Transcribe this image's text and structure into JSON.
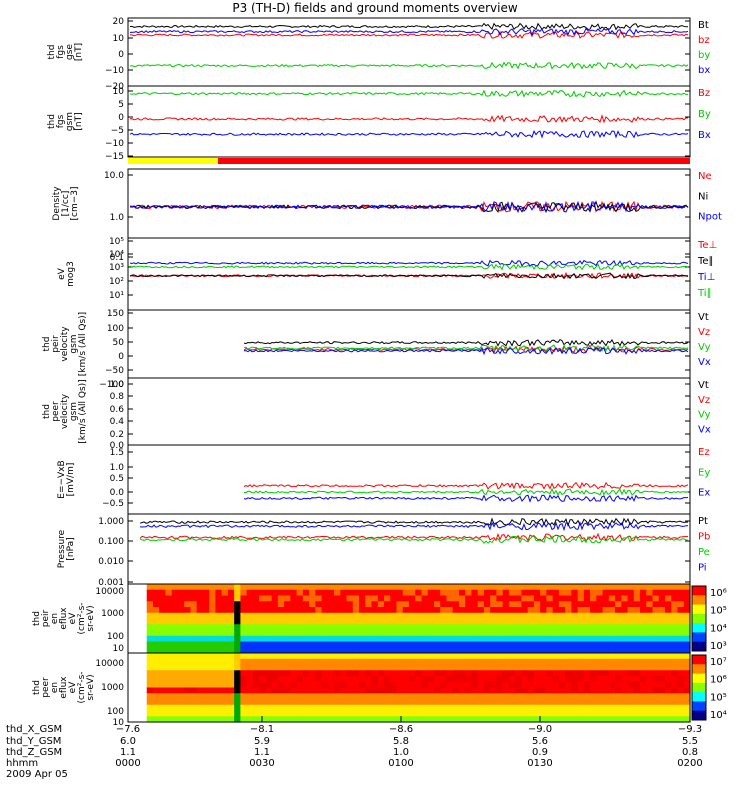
{
  "title": "P3 (TH-D) fields and ground moments overview",
  "colors": {
    "black": "#000000",
    "red": "#ff0000",
    "green": "#00cc00",
    "blue": "#0000ff",
    "yellow": "#ffff00"
  },
  "chart_data": [
    {
      "type": "line",
      "panel": "fgs-gse",
      "ylabel": [
        "thd",
        "fgs",
        "gse",
        "[nT]"
      ],
      "ylim": [
        -20,
        20
      ],
      "yticks": [
        "20",
        "10",
        "0",
        "−10",
        "−20"
      ],
      "series": [
        {
          "name": "Bt",
          "color": "black",
          "approx": 15
        },
        {
          "name": "bz",
          "color": "red",
          "approx": 10
        },
        {
          "name": "by",
          "color": "green",
          "approx": -8
        },
        {
          "name": "bx",
          "color": "blue",
          "approx": 12
        }
      ]
    },
    {
      "type": "line",
      "panel": "fgs-gsm",
      "ylabel": [
        "thd",
        "fgs",
        "gsm",
        "[nT]"
      ],
      "ylim": [
        -18,
        10
      ],
      "yticks": [
        "10",
        "5",
        "0",
        "−5",
        "−10",
        "−15"
      ],
      "series": [
        {
          "name": "Bz",
          "color": "red",
          "approx": -3
        },
        {
          "name": "By",
          "color": "green",
          "approx": 7
        },
        {
          "name": "Bx",
          "color": "blue",
          "approx": -9
        }
      ]
    },
    {
      "type": "line",
      "panel": "density",
      "ylabel": [
        "Density",
        "[1/cc]",
        "[cm−3]"
      ],
      "scale": "log",
      "ylim": [
        0.1,
        10
      ],
      "yticks": [
        "10.0",
        "1.0",
        "0.1"
      ],
      "series": [
        {
          "name": "Ne",
          "color": "red",
          "approx": 0.8
        },
        {
          "name": "Ni",
          "color": "black",
          "approx": 0.8
        },
        {
          "name": "Npot",
          "color": "blue",
          "approx": 0.8
        }
      ]
    },
    {
      "type": "line",
      "panel": "temperature",
      "ylabel": [
        "eV",
        "mog3"
      ],
      "scale": "log",
      "ylim": [
        10,
        100000
      ],
      "yticks": [
        "10⁵",
        "10⁴",
        "10³",
        "10²",
        "10¹"
      ],
      "series": [
        {
          "name": "Te⊥",
          "color": "red",
          "approx": 800
        },
        {
          "name": "Te∥",
          "color": "black",
          "approx": 800
        },
        {
          "name": "Ti⊥",
          "color": "blue",
          "approx": 4000
        },
        {
          "name": "Ti∥",
          "color": "green",
          "approx": 2500
        }
      ]
    },
    {
      "type": "line",
      "panel": "peir-velocity",
      "ylabel": [
        "thd",
        "peir",
        "velocity",
        "gsm",
        "[km/s (All Qs)]"
      ],
      "ylim": [
        -100,
        150
      ],
      "yticks": [
        "150",
        "100",
        "50",
        "0",
        "−50",
        "−100"
      ],
      "series": [
        {
          "name": "Vt",
          "color": "black",
          "approx": 30
        },
        {
          "name": "Vz",
          "color": "red",
          "approx": 5
        },
        {
          "name": "Vy",
          "color": "green",
          "approx": 10
        },
        {
          "name": "Vx",
          "color": "blue",
          "approx": 0
        }
      ]
    },
    {
      "type": "line",
      "panel": "peer-velocity",
      "ylabel": [
        "thd",
        "peer",
        "velocity",
        "gsm",
        "[km/s (All Qs)]"
      ],
      "ylim": [
        0,
        1
      ],
      "yticks": [
        "1.0",
        "0.8",
        "0.6",
        "0.4",
        "0.2",
        "0.0"
      ],
      "series": [
        {
          "name": "Vt",
          "color": "black"
        },
        {
          "name": "Vz",
          "color": "red"
        },
        {
          "name": "Vy",
          "color": "green"
        },
        {
          "name": "Vx",
          "color": "blue"
        }
      ]
    },
    {
      "type": "line",
      "panel": "efield",
      "ylabel": [
        "E=−VxB",
        "[mV/m]"
      ],
      "ylim": [
        -0.6,
        1.6
      ],
      "yticks": [
        "1.5",
        "1.0",
        "0.5",
        "0.0",
        "−0.5"
      ],
      "series": [
        {
          "name": "Ez",
          "color": "red",
          "approx": 0.3
        },
        {
          "name": "Ey",
          "color": "green",
          "approx": 0.1
        },
        {
          "name": "Ex",
          "color": "blue",
          "approx": -0.1
        }
      ]
    },
    {
      "type": "line",
      "panel": "pressure",
      "ylabel": [
        "Pressure",
        "[nPa]"
      ],
      "scale": "log",
      "ylim": [
        0.001,
        1
      ],
      "yticks": [
        "1.000",
        "0.100",
        "0.010",
        "0.001"
      ],
      "series": [
        {
          "name": "Pt",
          "color": "black",
          "approx": 0.45
        },
        {
          "name": "Pb",
          "color": "red",
          "approx": 0.1
        },
        {
          "name": "Pe",
          "color": "green",
          "approx": 0.08
        },
        {
          "name": "Pi",
          "color": "blue",
          "approx": 0.3
        }
      ]
    },
    {
      "type": "heatmap",
      "panel": "peir-spec",
      "ylabel": [
        "thd",
        "peir",
        "en",
        "eflux",
        "eV",
        "(cm²-s-",
        "sr-eV)"
      ],
      "scale": "log",
      "yticks": [
        "10000",
        "1000",
        "100",
        "10"
      ],
      "colorbar_ticks": [
        "10⁶",
        "10⁵",
        "10⁴",
        "10³"
      ]
    },
    {
      "type": "heatmap",
      "panel": "peer-spec",
      "ylabel": [
        "thd",
        "peer",
        "en",
        "eflux",
        "eV",
        "(cm²-s-",
        "sr-eV)"
      ],
      "scale": "log",
      "yticks": [
        "10000",
        "1000",
        "100",
        "10"
      ],
      "colorbar_ticks": [
        "10⁷",
        "10⁶",
        "10⁵",
        "10⁴"
      ]
    }
  ],
  "x_axis": {
    "row_labels": [
      "thd_X_GSM",
      "thd_Y_GSM",
      "thd_Z_GSM",
      "hhmm",
      "2009 Apr 05"
    ],
    "x_gsm": [
      "−7.6",
      "−8.1",
      "−8.6",
      "−9.0",
      "−9.3"
    ],
    "y_gsm": [
      "6.0",
      "5.9",
      "5.8",
      "5.6",
      "5.5"
    ],
    "z_gsm": [
      "1.1",
      "1.1",
      "1.0",
      "0.9",
      "0.8"
    ],
    "hhmm": [
      "0000",
      "0030",
      "0100",
      "0130",
      "0200"
    ]
  }
}
